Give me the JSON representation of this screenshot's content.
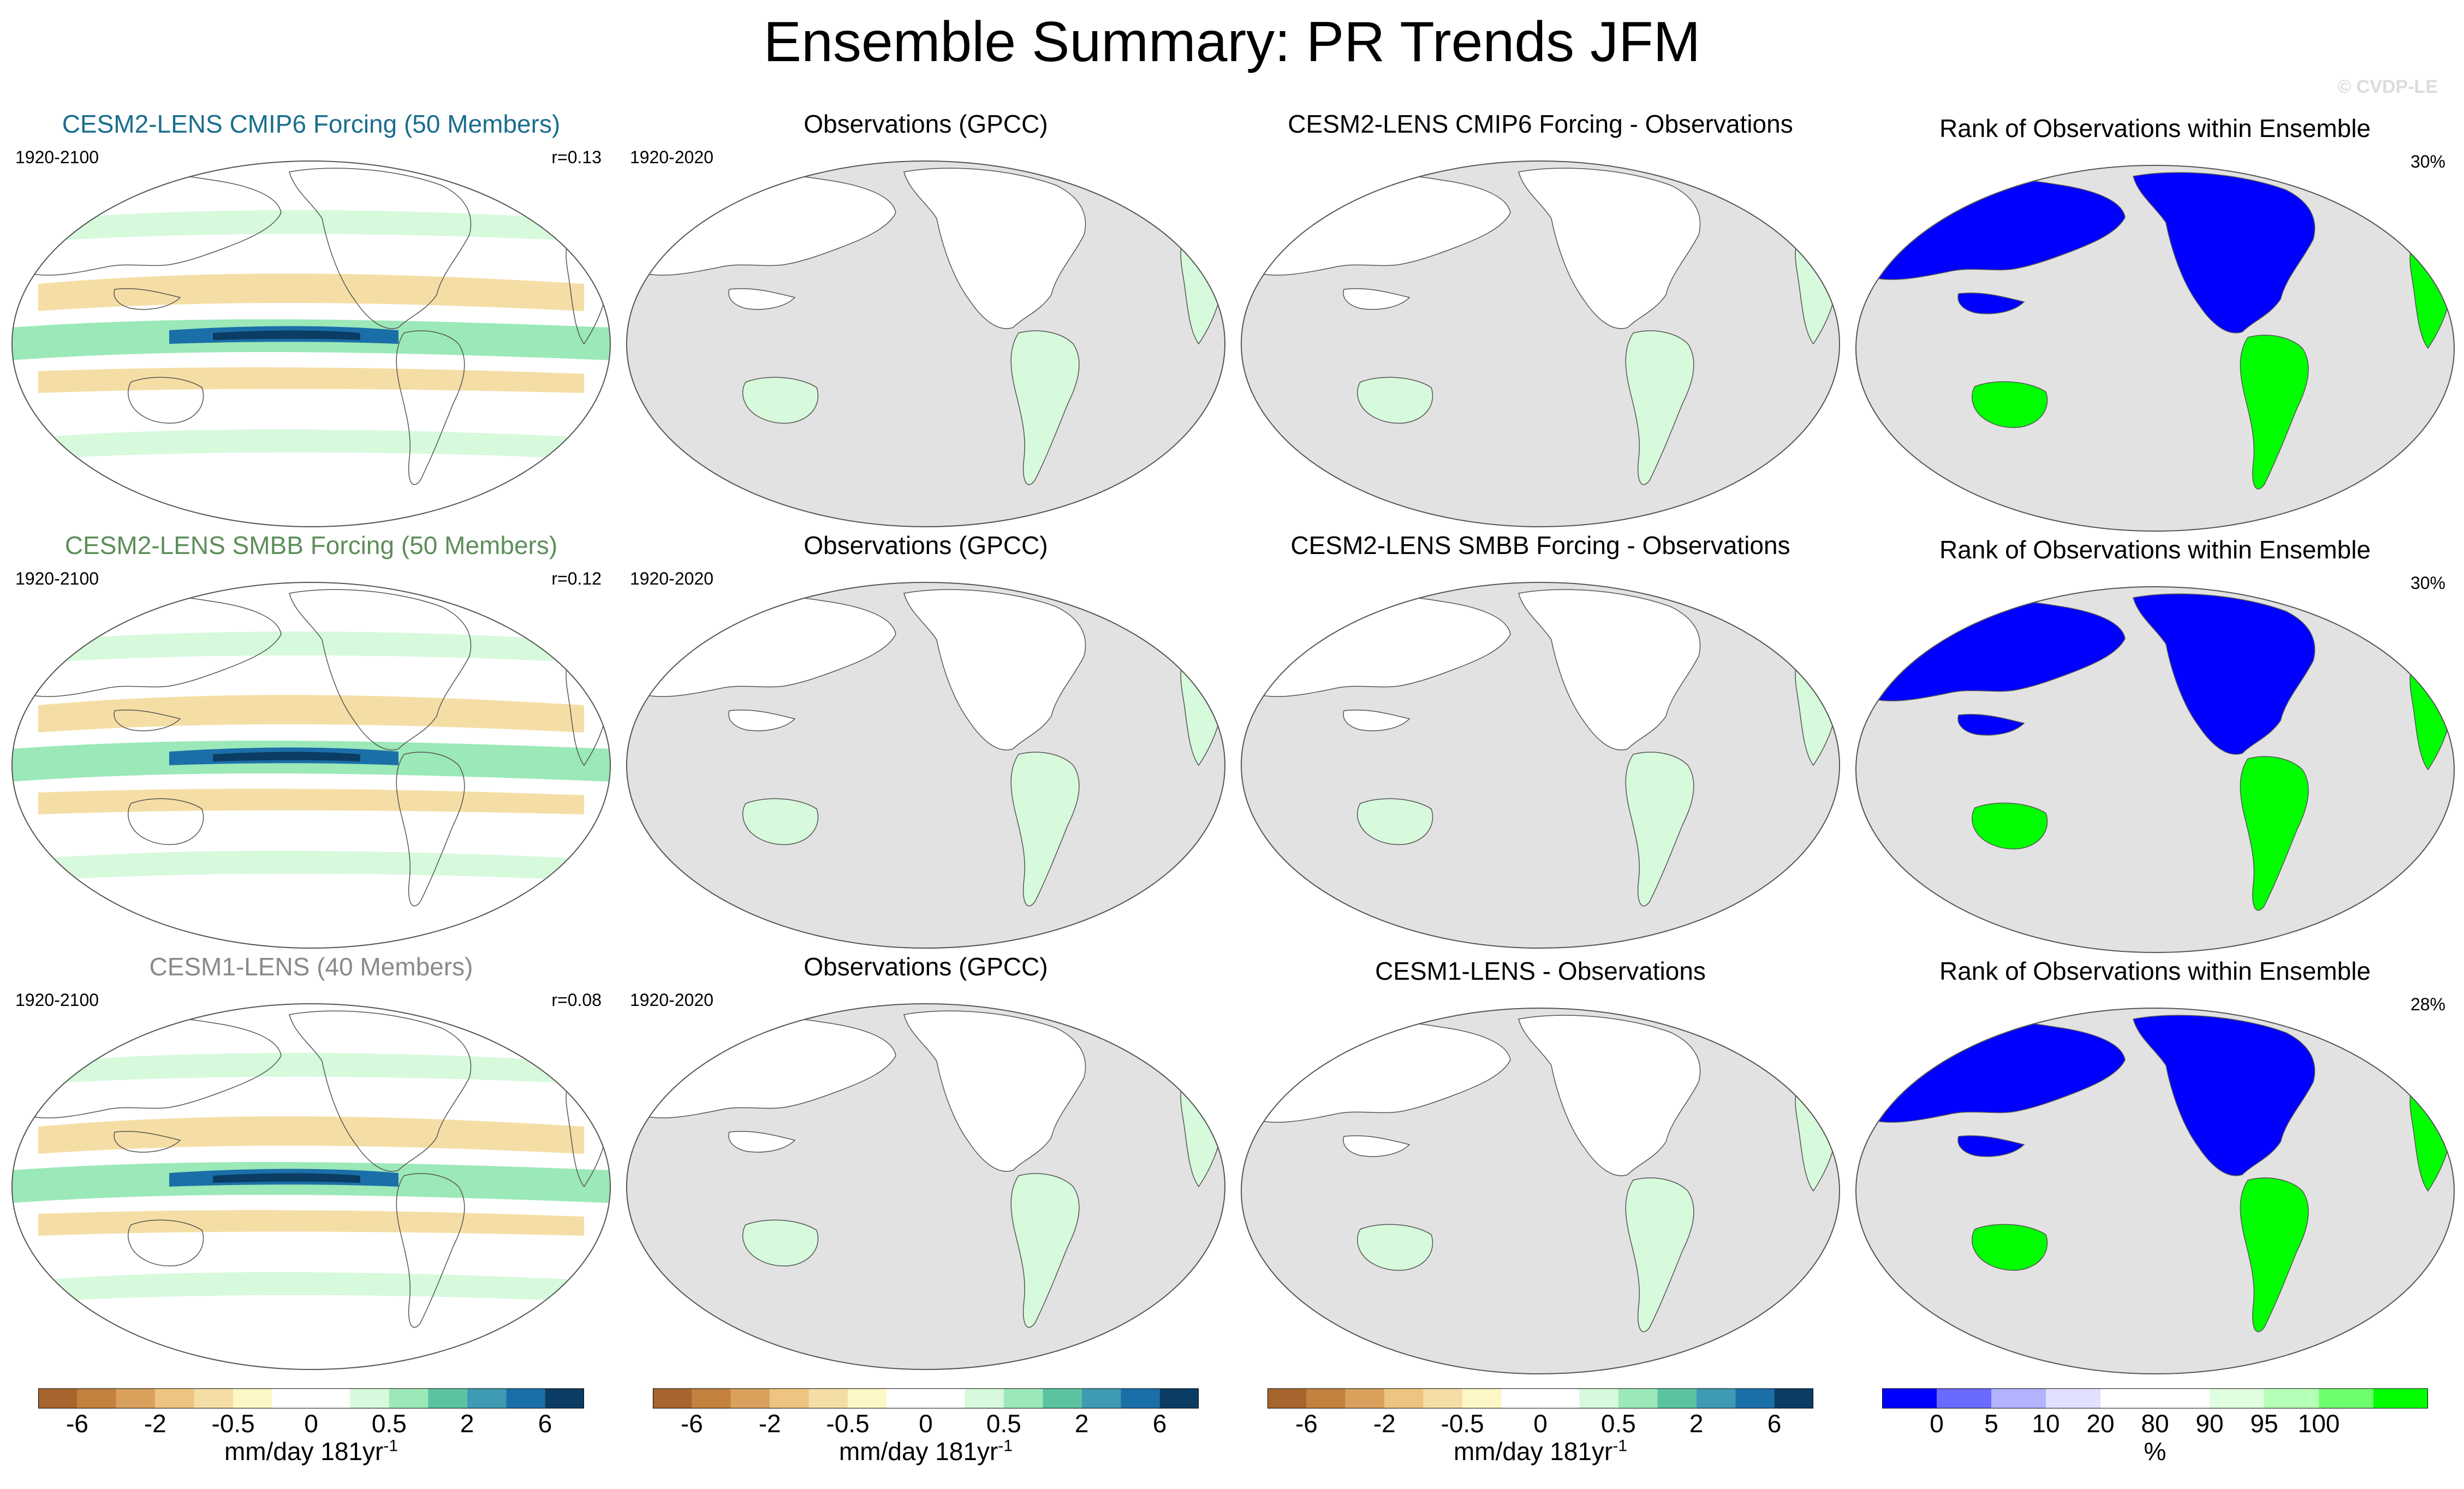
{
  "title": "Ensemble Summary: PR Trends JFM",
  "watermark": "© CVDP-LE",
  "rows": [
    {
      "model": {
        "title": "CESM2-LENS CMIP6 Forcing (50 Members)",
        "years": "1920-2100",
        "corr": "r=0.13"
      },
      "obs": {
        "title": "Observations (GPCC)",
        "years": "1920-2020"
      },
      "diff": {
        "title": "CESM2-LENS CMIP6 Forcing - Observations"
      },
      "rank": {
        "title": "Rank of Observations within Ensemble",
        "pct": "30%"
      }
    },
    {
      "model": {
        "title": "CESM2-LENS SMBB Forcing (50 Members)",
        "years": "1920-2100",
        "corr": "r=0.12"
      },
      "obs": {
        "title": "Observations (GPCC)",
        "years": "1920-2020"
      },
      "diff": {
        "title": "CESM2-LENS SMBB Forcing - Observations"
      },
      "rank": {
        "title": "Rank of Observations within Ensemble",
        "pct": "30%"
      }
    },
    {
      "model": {
        "title": "CESM1-LENS (40 Members)",
        "years": "1920-2100",
        "corr": "r=0.08"
      },
      "obs": {
        "title": "Observations (GPCC)",
        "years": "1920-2020"
      },
      "diff": {
        "title": "CESM1-LENS - Observations"
      },
      "rank": {
        "title": "Rank of Observations within Ensemble",
        "pct": "28%"
      }
    }
  ],
  "colorbars": {
    "trend": {
      "colors": [
        "#a8642d",
        "#c4813e",
        "#d9a15c",
        "#edc581",
        "#f5dea5",
        "#fdf7c6",
        "#ffffff",
        "#ffffff",
        "#d7f9dc",
        "#9be8b8",
        "#5bc3a2",
        "#3f9ab4",
        "#1b6fa8",
        "#0b3c63"
      ],
      "tick_labels": [
        "-6",
        "-2",
        "-0.5",
        "0",
        "0.5",
        "2",
        "6"
      ],
      "unit": "mm/day 181yr",
      "unit_sup": "-1"
    },
    "rank": {
      "colors": [
        "#0000ff",
        "#6a6aff",
        "#b2b2ff",
        "#e1e1ff",
        "#ffffff",
        "#ffffff",
        "#e0ffe0",
        "#b6ffb6",
        "#6eff6e",
        "#00ff00"
      ],
      "tick_labels": [
        "0",
        "5",
        "10",
        "20",
        "80",
        "90",
        "95",
        "100"
      ],
      "unit": "%"
    }
  },
  "chart_data": [
    {
      "type": "heatmap",
      "title": "CESM2-LENS CMIP6 Forcing (50 Members)",
      "variable": "PR trend JFM",
      "period": "1920-2100",
      "pattern_correlation": 0.13,
      "units": "mm/day 181yr-1"
    },
    {
      "type": "heatmap",
      "title": "Observations (GPCC)",
      "period": "1920-2020",
      "units": "mm/day 181yr-1"
    },
    {
      "type": "heatmap",
      "title": "CESM2-LENS CMIP6 Forcing - Observations",
      "units": "mm/day 181yr-1"
    },
    {
      "type": "heatmap",
      "title": "Rank of Observations within Ensemble",
      "value_pct": 30,
      "units": "%"
    },
    {
      "type": "heatmap",
      "title": "CESM2-LENS SMBB Forcing (50 Members)",
      "period": "1920-2100",
      "pattern_correlation": 0.12
    },
    {
      "type": "heatmap",
      "title": "Observations (GPCC)",
      "period": "1920-2020"
    },
    {
      "type": "heatmap",
      "title": "CESM2-LENS SMBB Forcing - Observations"
    },
    {
      "type": "heatmap",
      "title": "Rank of Observations within Ensemble",
      "value_pct": 30
    },
    {
      "type": "heatmap",
      "title": "CESM1-LENS (40 Members)",
      "period": "1920-2100",
      "pattern_correlation": 0.08
    },
    {
      "type": "heatmap",
      "title": "Observations (GPCC)",
      "period": "1920-2020"
    },
    {
      "type": "heatmap",
      "title": "CESM1-LENS - Observations"
    },
    {
      "type": "heatmap",
      "title": "Rank of Observations within Ensemble",
      "value_pct": 28
    }
  ]
}
